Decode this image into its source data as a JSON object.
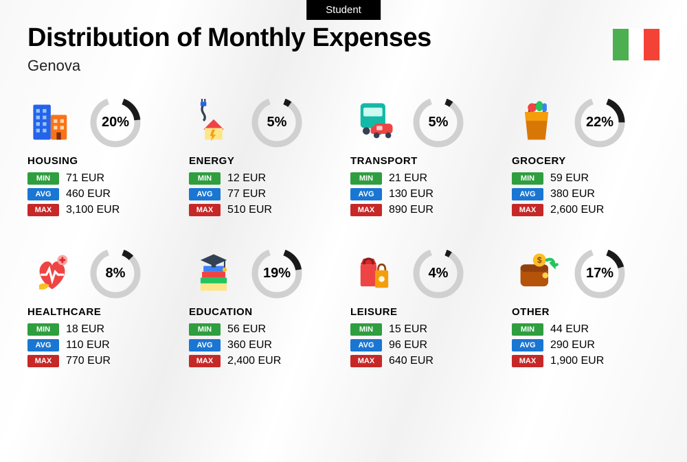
{
  "badge": "Student",
  "title": "Distribution of Monthly Expenses",
  "subtitle": "Genova",
  "flag_colors": [
    "#4caf50",
    "#ffffff",
    "#f44336"
  ],
  "donut": {
    "track_color": "#d0d0d0",
    "prog_color": "#1a1a1a",
    "stroke_width": 9,
    "gap_deg": 40
  },
  "badges": {
    "min": {
      "label": "MIN",
      "color": "#2e9e3f"
    },
    "avg": {
      "label": "AVG",
      "color": "#1976d2"
    },
    "max": {
      "label": "MAX",
      "color": "#c62828"
    }
  },
  "currency": "EUR",
  "categories": [
    {
      "key": "housing",
      "name": "HOUSING",
      "pct": 20,
      "min": "71",
      "avg": "460",
      "max": "3,100",
      "icon": "housing"
    },
    {
      "key": "energy",
      "name": "ENERGY",
      "pct": 5,
      "min": "12",
      "avg": "77",
      "max": "510",
      "icon": "energy"
    },
    {
      "key": "transport",
      "name": "TRANSPORT",
      "pct": 5,
      "min": "21",
      "avg": "130",
      "max": "890",
      "icon": "transport"
    },
    {
      "key": "grocery",
      "name": "GROCERY",
      "pct": 22,
      "min": "59",
      "avg": "380",
      "max": "2,600",
      "icon": "grocery"
    },
    {
      "key": "healthcare",
      "name": "HEALTHCARE",
      "pct": 8,
      "min": "18",
      "avg": "110",
      "max": "770",
      "icon": "healthcare"
    },
    {
      "key": "education",
      "name": "EDUCATION",
      "pct": 19,
      "min": "56",
      "avg": "360",
      "max": "2,400",
      "icon": "education"
    },
    {
      "key": "leisure",
      "name": "LEISURE",
      "pct": 4,
      "min": "15",
      "avg": "96",
      "max": "640",
      "icon": "leisure"
    },
    {
      "key": "other",
      "name": "OTHER",
      "pct": 17,
      "min": "44",
      "avg": "290",
      "max": "1,900",
      "icon": "other"
    }
  ]
}
